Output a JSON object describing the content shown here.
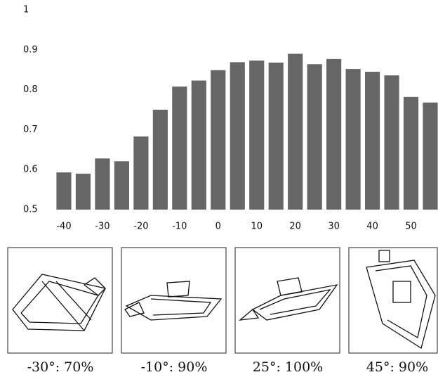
{
  "chart_data": {
    "type": "bar",
    "x": [
      -40,
      -35,
      -30,
      -25,
      -20,
      -15,
      -10,
      -5,
      0,
      5,
      10,
      15,
      20,
      25,
      30,
      35,
      40,
      45,
      50,
      55
    ],
    "values": [
      0.593,
      0.59,
      0.628,
      0.621,
      0.683,
      0.75,
      0.808,
      0.823,
      0.849,
      0.869,
      0.873,
      0.868,
      0.89,
      0.864,
      0.877,
      0.852,
      0.845,
      0.836,
      0.782,
      0.768
    ],
    "color": "#666666",
    "xlim": [
      -42,
      57
    ],
    "xticks": [
      -40,
      -30,
      -20,
      -10,
      0,
      10,
      20,
      30,
      40,
      50
    ],
    "ylim": [
      0.5,
      1
    ],
    "yticks": [
      0.5,
      0.6,
      0.7,
      0.8,
      0.9,
      1
    ]
  },
  "panels": [
    {
      "caption": "-30°: 70%"
    },
    {
      "caption": "-10°: 90%"
    },
    {
      "caption": "25°: 100%"
    },
    {
      "caption": "45°: 90%"
    }
  ]
}
